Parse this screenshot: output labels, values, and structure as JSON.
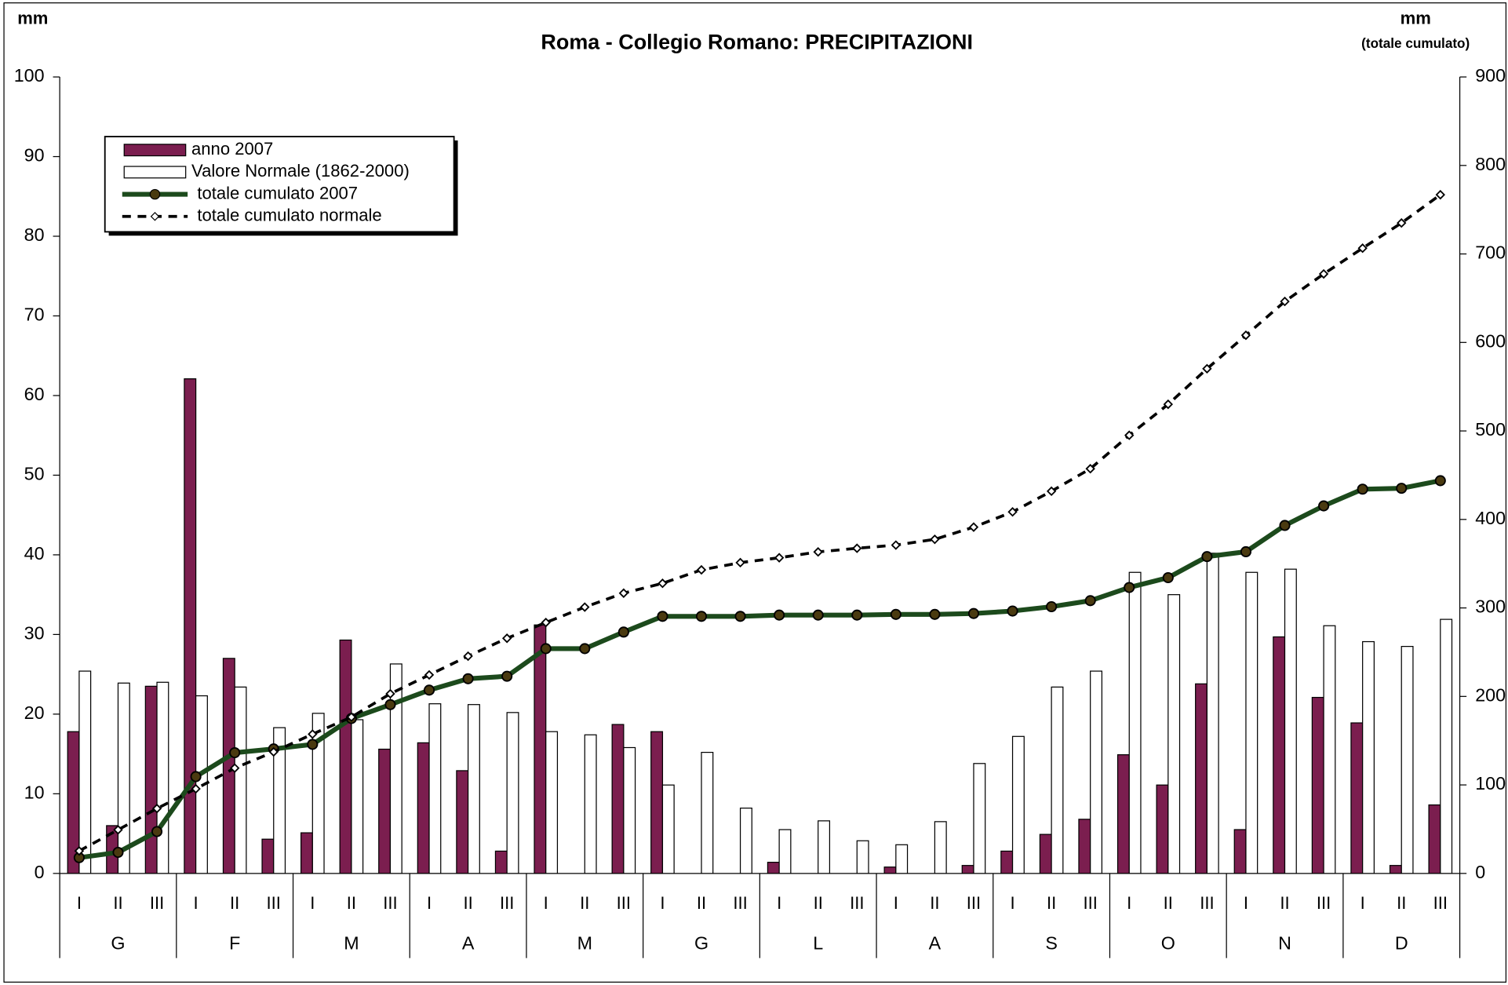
{
  "chart_data": {
    "type": "bar",
    "title": "Roma - Collegio Romano: PRECIPITAZIONI",
    "y_label": "mm",
    "y2_label": "mm",
    "y2_sublabel": "(totale cumulato)",
    "categories": [
      "I",
      "II",
      "III",
      "I",
      "II",
      "III",
      "I",
      "II",
      "III",
      "I",
      "II",
      "III",
      "I",
      "II",
      "III",
      "I",
      "II",
      "III",
      "I",
      "II",
      "III",
      "I",
      "II",
      "III",
      "I",
      "II",
      "III",
      "I",
      "II",
      "III",
      "I",
      "II",
      "III",
      "I",
      "II",
      "III"
    ],
    "groups": [
      "G",
      "F",
      "M",
      "A",
      "M",
      "G",
      "L",
      "A",
      "S",
      "O",
      "N",
      "D"
    ],
    "ylim": [
      0,
      100
    ],
    "yticks": [
      0,
      10,
      20,
      30,
      40,
      50,
      60,
      70,
      80,
      90,
      100
    ],
    "y2lim": [
      0,
      900
    ],
    "y2ticks": [
      0,
      100,
      200,
      300,
      400,
      500,
      600,
      700,
      800,
      900
    ],
    "legend": "upper left",
    "series": [
      {
        "name": "anno 2007",
        "type": "bar",
        "color": "#7b1e4f",
        "values": [
          17.8,
          6.0,
          23.5,
          62.1,
          27.0,
          4.3,
          5.1,
          29.3,
          15.6,
          16.4,
          12.9,
          2.8,
          31.2,
          0,
          18.7,
          17.8,
          0,
          0,
          1.4,
          0,
          0,
          0.8,
          0,
          1.0,
          2.8,
          4.9,
          6.8,
          14.9,
          11.1,
          23.8,
          5.5,
          29.7,
          22.1,
          18.9,
          1.0,
          8.6
        ]
      },
      {
        "name": "Valore Normale (1862-2000)",
        "type": "bar",
        "color": "#ffffff",
        "values": [
          25.4,
          23.9,
          24.0,
          22.3,
          23.4,
          18.3,
          20.1,
          19.3,
          26.3,
          21.3,
          21.2,
          20.2,
          17.8,
          17.4,
          15.8,
          11.1,
          15.2,
          8.2,
          5.5,
          6.6,
          4.1,
          3.6,
          6.5,
          13.8,
          17.2,
          23.4,
          25.4,
          37.8,
          35.0,
          40.2,
          37.8,
          38.2,
          31.1,
          29.1,
          28.5,
          31.9
        ]
      },
      {
        "name": "totale cumulato 2007",
        "type": "line",
        "axis": "y2",
        "color": "#1c4a1c",
        "values": [
          17.8,
          23.8,
          47.3,
          109.4,
          136.4,
          140.7,
          145.8,
          175.1,
          190.7,
          207.1,
          220.0,
          222.8,
          254.0,
          254.0,
          272.7,
          290.5,
          290.5,
          290.5,
          291.9,
          291.9,
          291.9,
          292.7,
          292.7,
          293.7,
          296.5,
          301.4,
          308.2,
          323.1,
          334.2,
          358.0,
          363.5,
          393.2,
          415.3,
          434.2,
          435.2,
          443.8
        ]
      },
      {
        "name": "totale cumulato normale",
        "type": "line",
        "axis": "y2",
        "color": "#000000",
        "dashed": true,
        "values": [
          25.4,
          49.3,
          73.3,
          95.6,
          119.0,
          137.3,
          157.4,
          176.7,
          203.0,
          224.3,
          245.5,
          265.7,
          283.5,
          300.9,
          316.7,
          327.8,
          343.0,
          351.2,
          356.7,
          363.3,
          367.4,
          371.0,
          377.5,
          391.3,
          408.5,
          431.9,
          457.3,
          495.1,
          530.1,
          570.3,
          608.1,
          646.3,
          677.4,
          706.5,
          735.0,
          766.9
        ]
      }
    ]
  }
}
